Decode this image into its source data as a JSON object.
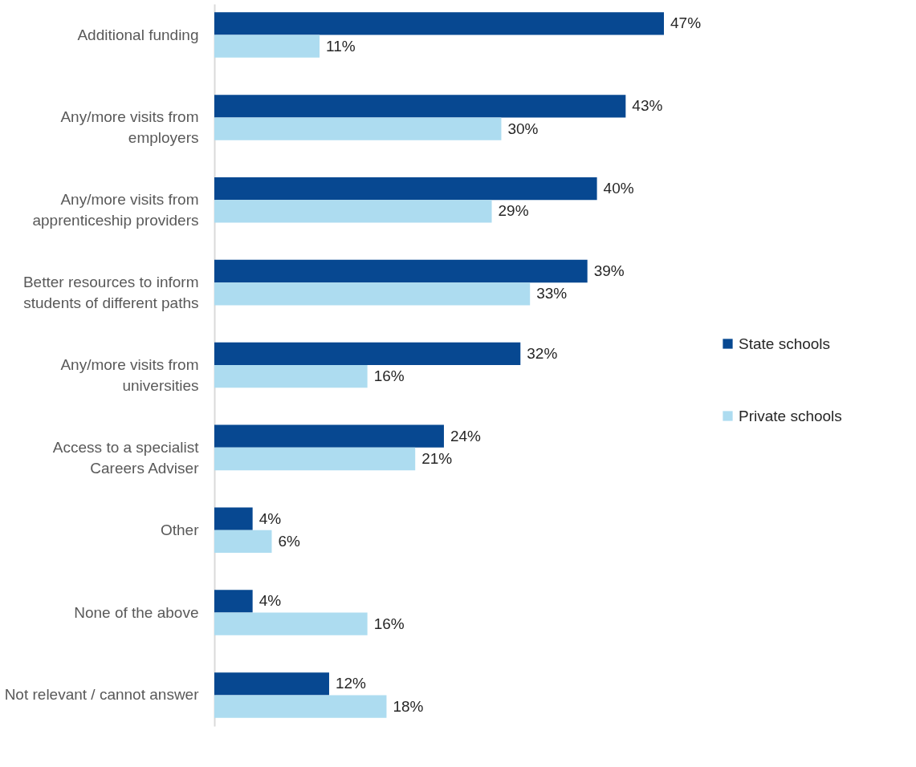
{
  "chart_data": {
    "type": "bar",
    "orientation": "horizontal",
    "legend": "right",
    "categories": [
      "Additional funding",
      "Any/more visits from employers",
      "Any/more visits from apprenticeship providers",
      "Better resources to inform students of different paths",
      "Any/more visits from universities",
      "Access to a specialist Careers Adviser",
      "Other",
      "None of the above",
      "Not relevant / cannot answer"
    ],
    "series": [
      {
        "name": "State schools",
        "color": "#074891",
        "values": [
          47,
          43,
          40,
          39,
          32,
          24,
          4,
          4,
          12
        ],
        "value_labels": [
          "47%",
          "43%",
          "40%",
          "39%",
          "32%",
          "24%",
          "4%",
          "4%",
          "12%"
        ]
      },
      {
        "name": "Private schools",
        "color": "#addcf0",
        "values": [
          11,
          30,
          29,
          33,
          16,
          21,
          6,
          16,
          18
        ],
        "value_labels": [
          "11%",
          "30%",
          "29%",
          "33%",
          "16%",
          "21%",
          "6%",
          "16%",
          "18%"
        ]
      }
    ]
  }
}
